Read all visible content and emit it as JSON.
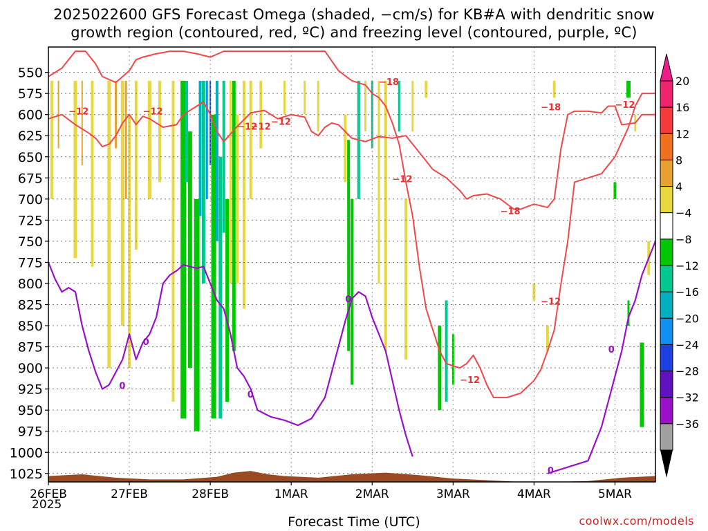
{
  "title": {
    "line1": "2025022600 GFS Forecast Omega (shaded, −cm/s) for KB#A with dendritic snow",
    "line2": "growth region (contoured, red, ºC) and freezing level (contoured, purple, ºC)"
  },
  "credit": "coolwx.com/models",
  "chart_data": {
    "type": "heatmap",
    "xlabel": "Forecast Time (UTC)",
    "ylabel": "",
    "x_ticks": [
      "26FEB",
      "27FEB",
      "28FEB",
      "1MAR",
      "2MAR",
      "3MAR",
      "4MAR",
      "5MAR"
    ],
    "x_year": "2025",
    "x_range_hours": [
      0,
      180
    ],
    "y_ticks": [
      550,
      575,
      600,
      625,
      650,
      675,
      700,
      725,
      750,
      775,
      800,
      825,
      850,
      875,
      900,
      925,
      950,
      975,
      1000,
      1025
    ],
    "ylim": [
      520,
      1035
    ],
    "y_units": "hPa",
    "colorbar": {
      "labels": [
        "20",
        "16",
        "12",
        "8",
        "4",
        "−4",
        "−8",
        "−12",
        "−16",
        "−20",
        "−24",
        "−28",
        "−32",
        "−36"
      ],
      "colors": [
        "#f0246e",
        "#f43a3a",
        "#f07020",
        "#e8a030",
        "#e8d840",
        "#ffffff",
        "#00c800",
        "#00c890",
        "#00b0c0",
        "#1090f0",
        "#1c40e0",
        "#6010c0",
        "#9a10c8",
        "#a0a0a0"
      ],
      "top_arrow_color": "#f01a8a",
      "bottom_arrow_color": "#000000"
    },
    "contour_labels": {
      "dgz": [
        "−12",
        "−12",
        "−12",
        "−12",
        "−18",
        "−12",
        "−18",
        "−18",
        "−12",
        "−12",
        "−12",
        "−12"
      ],
      "freezing": [
        "0",
        "0",
        "0",
        "0",
        "0",
        "0"
      ]
    },
    "dgz_upper": [
      [
        0,
        605
      ],
      [
        4,
        600
      ],
      [
        8,
        612
      ],
      [
        12,
        622
      ],
      [
        14,
        628
      ],
      [
        16,
        638
      ],
      [
        18,
        635
      ],
      [
        20,
        625
      ],
      [
        22,
        610
      ],
      [
        24,
        600
      ],
      [
        26,
        612
      ],
      [
        28,
        602
      ],
      [
        30,
        605
      ],
      [
        34,
        615
      ],
      [
        38,
        612
      ],
      [
        40,
        600
      ],
      [
        44,
        590
      ],
      [
        46,
        585
      ],
      [
        48,
        600
      ],
      [
        50,
        620
      ],
      [
        52,
        632
      ],
      [
        56,
        614
      ],
      [
        60,
        598
      ],
      [
        64,
        595
      ],
      [
        68,
        605
      ],
      [
        72,
        600
      ],
      [
        76,
        603
      ],
      [
        78,
        620
      ],
      [
        80,
        625
      ],
      [
        82,
        615
      ],
      [
        84,
        610
      ],
      [
        86,
        612
      ],
      [
        88,
        620
      ],
      [
        90,
        628
      ],
      [
        94,
        632
      ],
      [
        98,
        626
      ],
      [
        102,
        628
      ],
      [
        106,
        625
      ],
      [
        110,
        645
      ],
      [
        114,
        665
      ],
      [
        118,
        675
      ],
      [
        122,
        690
      ],
      [
        124,
        700
      ],
      [
        126,
        696
      ],
      [
        130,
        694
      ],
      [
        134,
        700
      ],
      [
        138,
        712
      ],
      [
        140,
        712
      ],
      [
        144,
        706
      ],
      [
        148,
        710
      ],
      [
        150,
        700
      ],
      [
        152,
        640
      ],
      [
        154,
        600
      ],
      [
        156,
        596
      ],
      [
        160,
        596
      ],
      [
        164,
        598
      ],
      [
        166,
        590
      ],
      [
        168,
        590
      ],
      [
        170,
        612
      ],
      [
        174,
        610
      ],
      [
        176,
        600
      ],
      [
        180,
        600
      ]
    ],
    "dgz_lower": [
      [
        0,
        555
      ],
      [
        4,
        545
      ],
      [
        8,
        525
      ],
      [
        11,
        525
      ],
      [
        12,
        530
      ],
      [
        14,
        540
      ],
      [
        16,
        555
      ],
      [
        20,
        562
      ],
      [
        22,
        555
      ],
      [
        24,
        548
      ],
      [
        26,
        535
      ],
      [
        28,
        532
      ],
      [
        32,
        528
      ],
      [
        36,
        525
      ],
      [
        40,
        525
      ],
      [
        44,
        528
      ],
      [
        48,
        532
      ],
      [
        52,
        525
      ],
      [
        58,
        525
      ],
      [
        64,
        525
      ],
      [
        70,
        525
      ],
      [
        76,
        525
      ],
      [
        82,
        525
      ],
      [
        86,
        548
      ],
      [
        90,
        560
      ],
      [
        94,
        565
      ],
      [
        96,
        575
      ],
      [
        98,
        580
      ],
      [
        100,
        590
      ],
      [
        102,
        610
      ],
      [
        104,
        635
      ],
      [
        106,
        680
      ],
      [
        108,
        720
      ],
      [
        110,
        780
      ],
      [
        112,
        830
      ],
      [
        114,
        855
      ],
      [
        116,
        880
      ],
      [
        118,
        895
      ],
      [
        122,
        900
      ],
      [
        124,
        895
      ],
      [
        126,
        885
      ],
      [
        128,
        900
      ],
      [
        130,
        920
      ],
      [
        132,
        935
      ],
      [
        136,
        935
      ],
      [
        140,
        930
      ],
      [
        144,
        915
      ],
      [
        146,
        902
      ],
      [
        148,
        880
      ],
      [
        150,
        855
      ],
      [
        152,
        800
      ],
      [
        154,
        750
      ],
      [
        156,
        680
      ],
      [
        160,
        675
      ],
      [
        164,
        670
      ],
      [
        168,
        650
      ],
      [
        172,
        615
      ],
      [
        174,
        590
      ],
      [
        176,
        575
      ],
      [
        180,
        575
      ]
    ],
    "freezing_level": [
      [
        0,
        775
      ],
      [
        2,
        795
      ],
      [
        4,
        810
      ],
      [
        6,
        805
      ],
      [
        8,
        810
      ],
      [
        10,
        850
      ],
      [
        12,
        880
      ],
      [
        14,
        905
      ],
      [
        16,
        925
      ],
      [
        18,
        920
      ],
      [
        20,
        905
      ],
      [
        22,
        890
      ],
      [
        24,
        860
      ],
      [
        25,
        875
      ],
      [
        26,
        890
      ],
      [
        27,
        880
      ],
      [
        28,
        870
      ],
      [
        30,
        860
      ],
      [
        32,
        840
      ],
      [
        34,
        800
      ],
      [
        36,
        790
      ],
      [
        38,
        785
      ],
      [
        40,
        778
      ],
      [
        42,
        780
      ],
      [
        44,
        782
      ],
      [
        46,
        780
      ],
      [
        48,
        800
      ],
      [
        50,
        820
      ],
      [
        52,
        830
      ],
      [
        54,
        860
      ],
      [
        56,
        900
      ],
      [
        58,
        910
      ],
      [
        60,
        925
      ],
      [
        62,
        950
      ],
      [
        66,
        958
      ],
      [
        70,
        962
      ],
      [
        74,
        968
      ],
      [
        78,
        960
      ],
      [
        82,
        935
      ],
      [
        86,
        875
      ],
      [
        88,
        845
      ],
      [
        90,
        818
      ],
      [
        92,
        810
      ],
      [
        94,
        815
      ],
      [
        96,
        840
      ],
      [
        98,
        860
      ],
      [
        100,
        880
      ],
      [
        102,
        915
      ],
      [
        104,
        950
      ],
      [
        106,
        980
      ],
      [
        108,
        1005
      ]
    ],
    "freezing_level_late": [
      [
        148,
        1025
      ],
      [
        152,
        1020
      ],
      [
        156,
        1015
      ],
      [
        160,
        1010
      ],
      [
        162,
        990
      ],
      [
        164,
        970
      ],
      [
        166,
        940
      ],
      [
        168,
        910
      ],
      [
        170,
        880
      ],
      [
        172,
        840
      ],
      [
        174,
        820
      ],
      [
        176,
        790
      ],
      [
        178,
        770
      ],
      [
        180,
        750
      ]
    ]
  }
}
